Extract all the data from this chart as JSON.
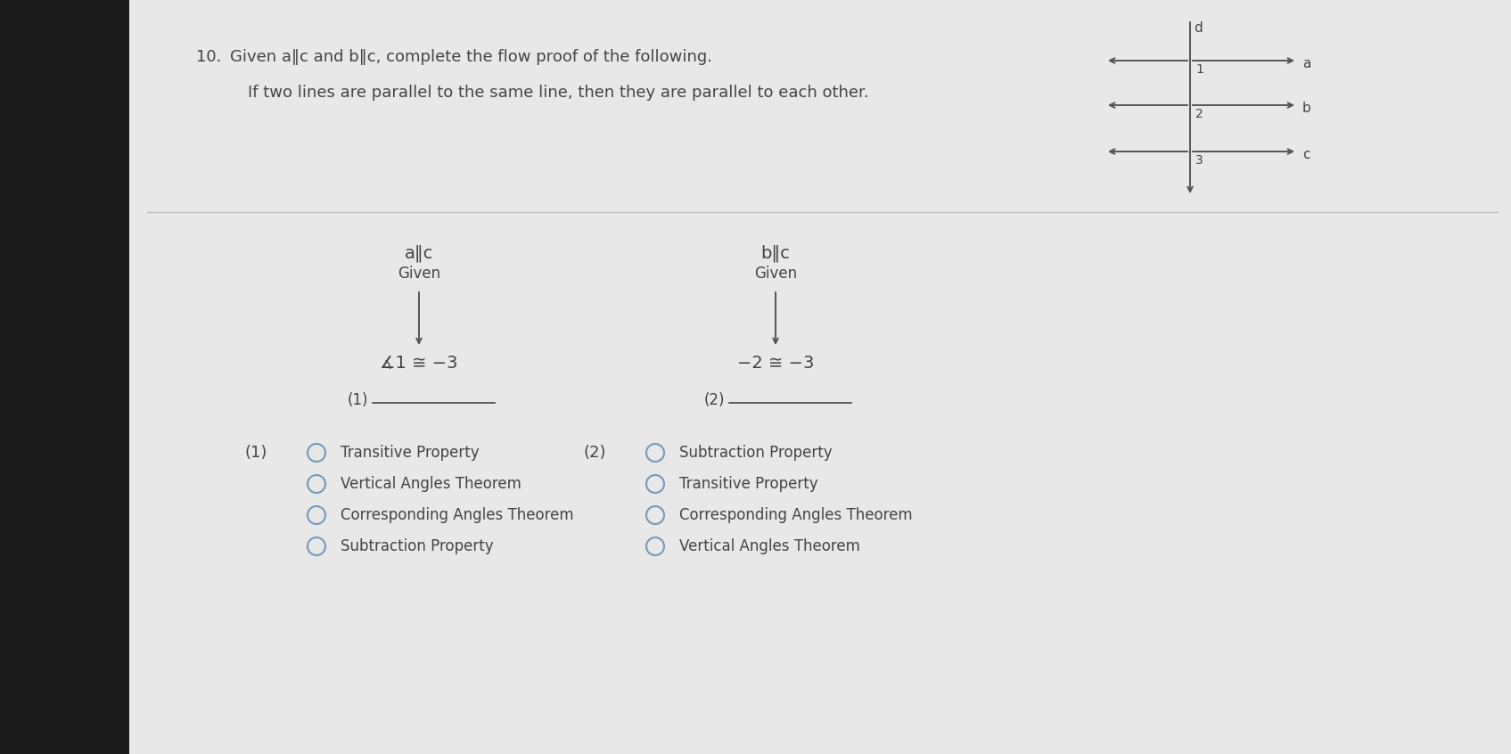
{
  "bg_color": "#888888",
  "page_color": "#e8e8e8",
  "left_shadow_color": "#1a1a1a",
  "question_number": "10.",
  "question_text": "Given a‖c and b‖c, complete the flow proof of the following.",
  "theorem_text": "If two lines are parallel to the same line, then they are parallel to each other.",
  "flow_left_given": "a‖c",
  "flow_left_given_label": "Given",
  "flow_left_result": "∡1 ≅ −3",
  "flow_left_blank_label": "(1)",
  "flow_right_given": "b‖c",
  "flow_right_given_label": "Given",
  "flow_right_result": "−2 ≅ −3",
  "flow_right_blank_label": "(2)",
  "options_1_label": "(1)",
  "options_1": [
    "Transitive Property",
    "Vertical Angles Theorem",
    "Corresponding Angles Theorem",
    "Subtraction Property"
  ],
  "options_2_label": "(2)",
  "options_2": [
    "Subtraction Property",
    "Transitive Property",
    "Corresponding Angles Theorem",
    "Vertical Angles Theorem"
  ],
  "text_color": "#444444",
  "arrow_color": "#555555",
  "circle_color": "#7799bb",
  "line_color": "#999999",
  "divider_color": "#bbbbbb"
}
